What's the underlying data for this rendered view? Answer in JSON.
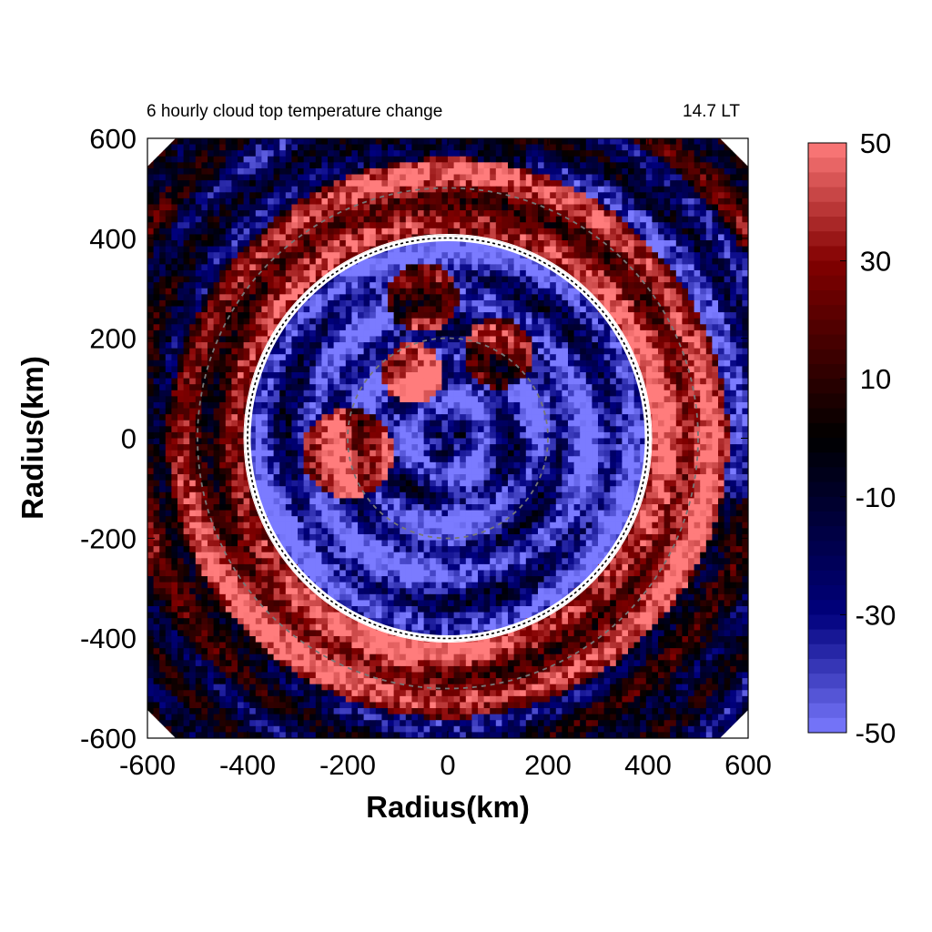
{
  "chart_data": {
    "type": "heatmap",
    "title": "6 hourly cloud top temperature change",
    "time_label": "14.7 LT",
    "xlabel": "Radius(km)",
    "ylabel": "Radius(km)",
    "xlim": [
      -600,
      600
    ],
    "ylim": [
      -600,
      600
    ],
    "xticks": [
      "-600",
      "-400",
      "-200",
      "0",
      "200",
      "400",
      "600"
    ],
    "yticks": [
      "600",
      "400",
      "200",
      "0",
      "-200",
      "-400",
      "-600"
    ],
    "colorbar": {
      "min": -50,
      "max": 50,
      "ticks": [
        "50",
        "30",
        "10",
        "-10",
        "-30",
        "-50"
      ],
      "colors": {
        "low": "#7b7bff",
        "mid_low": "#000055",
        "zero": "#000000",
        "mid_high": "#7a0000",
        "high": "#ff7c7c"
      }
    },
    "reference_circle_radius_km": 400,
    "dashed_circle_radii_km": [
      200,
      500
    ],
    "field_description_rings": [
      {
        "r": [
          0,
          400
        ],
        "mean": -35
      },
      {
        "r": [
          400,
          560
        ],
        "mean": 35
      },
      {
        "r": [
          560,
          850
        ],
        "mean": 0
      }
    ]
  }
}
